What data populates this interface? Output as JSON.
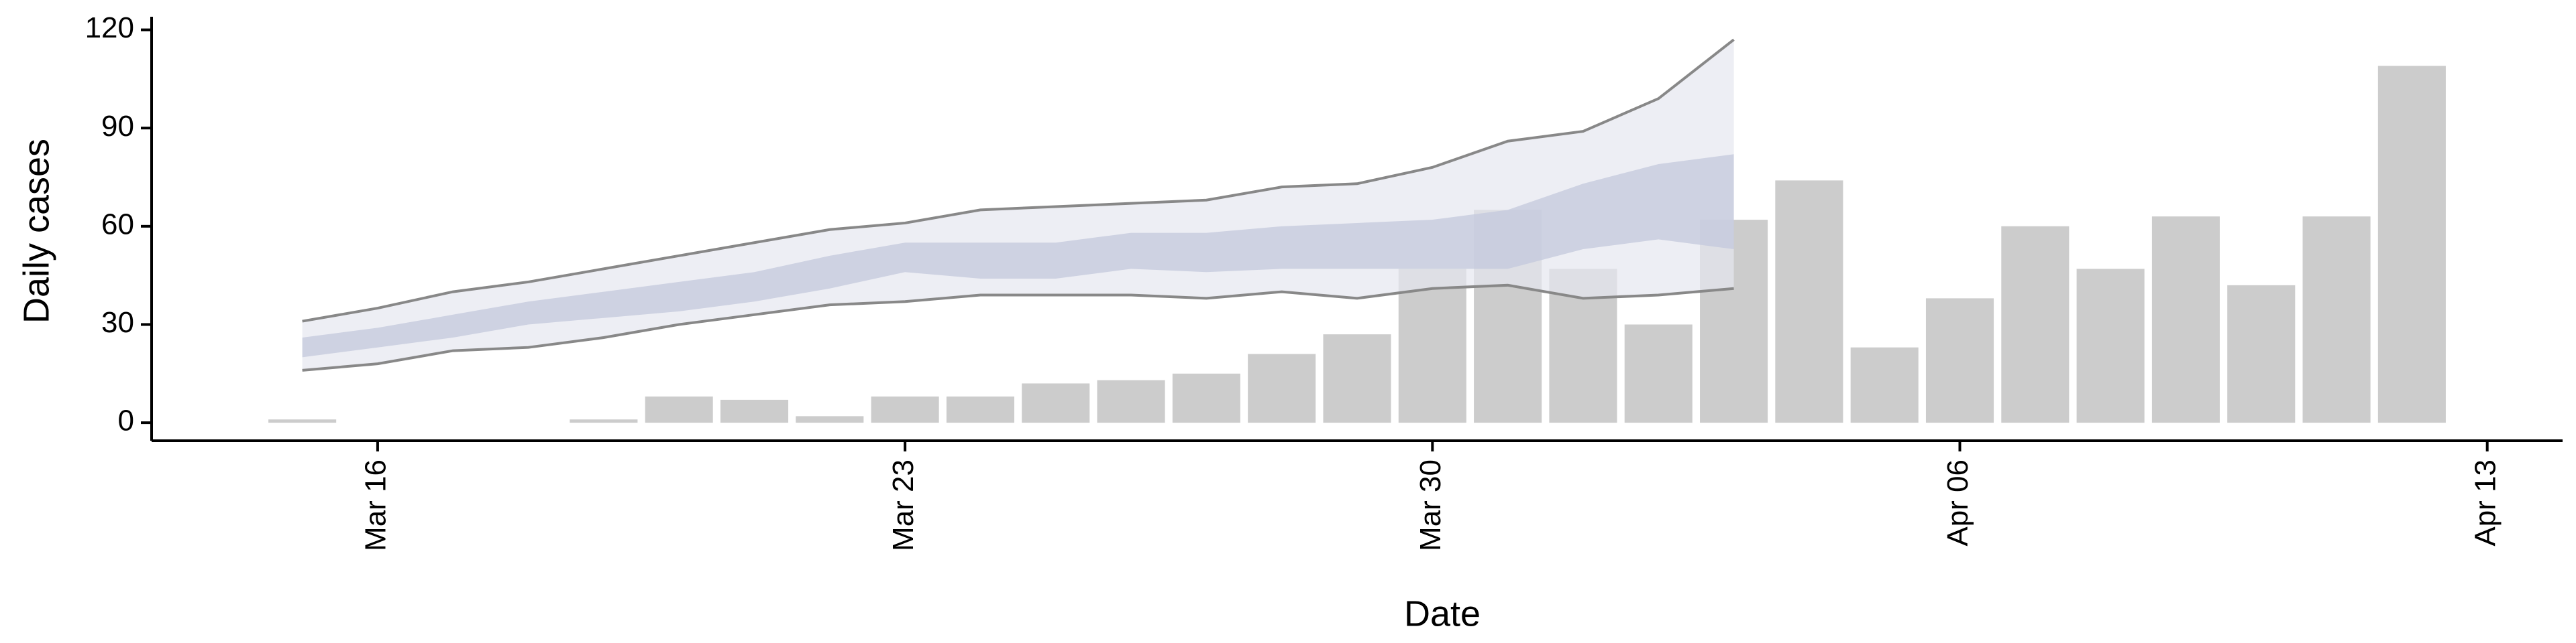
{
  "chart_data": {
    "type": "bar",
    "x_label": "Date",
    "y_label": "Daily cases",
    "x": [
      "Mar 15",
      "Mar 19",
      "Mar 20",
      "Mar 21",
      "Mar 22",
      "Mar 23",
      "Mar 24",
      "Mar 25",
      "Mar 26",
      "Mar 27",
      "Mar 28",
      "Mar 29",
      "Mar 30",
      "Mar 31",
      "Apr 01",
      "Apr 02",
      "Apr 03",
      "Apr 04",
      "Apr 05",
      "Apr 06",
      "Apr 07",
      "Apr 08",
      "Apr 09",
      "Apr 10",
      "Apr 11",
      "Apr 12"
    ],
    "values": [
      1,
      1,
      8,
      7,
      2,
      8,
      8,
      12,
      13,
      15,
      21,
      27,
      47,
      65,
      47,
      30,
      62,
      74,
      23,
      38,
      60,
      47,
      63,
      42,
      63,
      109
    ],
    "color": "#cccccc",
    "forecast": {
      "x": [
        "Mar 15",
        "Mar 16",
        "Mar 17",
        "Mar 18",
        "Mar 19",
        "Mar 20",
        "Mar 21",
        "Mar 22",
        "Mar 23",
        "Mar 24",
        "Mar 25",
        "Mar 26",
        "Mar 27",
        "Mar 28",
        "Mar 29",
        "Mar 30",
        "Mar 31",
        "Apr 01",
        "Apr 02",
        "Apr 03"
      ],
      "upper": [
        31,
        35,
        40,
        43,
        47,
        51,
        55,
        59,
        61,
        65,
        66,
        67,
        68,
        72,
        73,
        78,
        86,
        89,
        99,
        117
      ],
      "lower": [
        16,
        18,
        22,
        23,
        26,
        30,
        33,
        36,
        37,
        39,
        39,
        39,
        38,
        40,
        38,
        41,
        42,
        38,
        39,
        41
      ],
      "inner_upper": [
        26,
        29,
        33,
        37,
        40,
        43,
        46,
        51,
        55,
        55,
        55,
        58,
        58,
        60,
        61,
        62,
        65,
        73,
        79,
        82
      ],
      "inner_lower": [
        20,
        23,
        26,
        30,
        32,
        34,
        37,
        41,
        46,
        44,
        44,
        47,
        46,
        47,
        47,
        47,
        47,
        53,
        56,
        53
      ],
      "band_color": "#e6e7f0",
      "inner_color": "#c3c8dc",
      "line_color": "#888888"
    },
    "xlim": [
      "Mar 13",
      "Apr 14"
    ],
    "xticks": [
      "Mar 16",
      "Mar 23",
      "Mar 30",
      "Apr 06",
      "Apr 13"
    ],
    "ylim": [
      -5.5,
      124
    ],
    "yticks": [
      0,
      30,
      60,
      90,
      120
    ]
  }
}
